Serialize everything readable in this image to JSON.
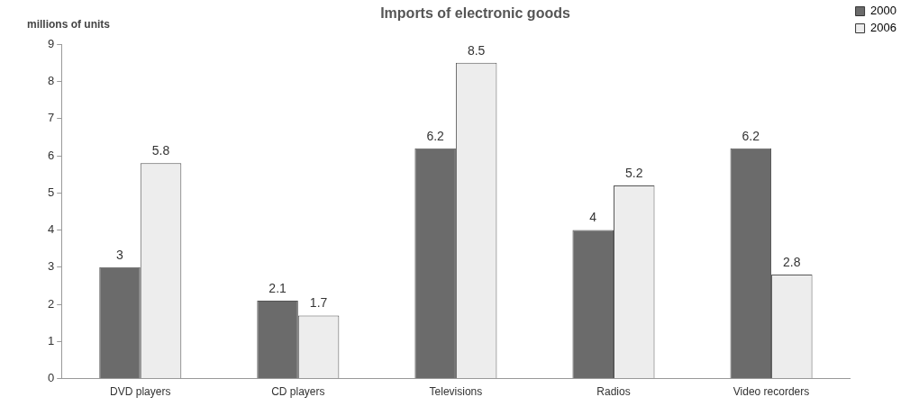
{
  "chart_data": {
    "type": "bar",
    "title": "Imports of electronic goods",
    "ylabel": "millions of units",
    "categories": [
      "DVD players",
      "CD players",
      "Televisions",
      "Radios",
      "Video recorders"
    ],
    "series": [
      {
        "name": "2000",
        "color": "#6b6b6b",
        "values": [
          3,
          2.1,
          6.2,
          4,
          6.2
        ]
      },
      {
        "name": "2006",
        "color": "#ededed",
        "values": [
          5.8,
          1.7,
          8.5,
          5.2,
          2.8
        ]
      }
    ],
    "ylim": [
      0,
      9
    ],
    "yticks": [
      0,
      1,
      2,
      3,
      4,
      5,
      6,
      7,
      8,
      9
    ],
    "grid": false,
    "legend": "top right",
    "data_labels": true
  }
}
